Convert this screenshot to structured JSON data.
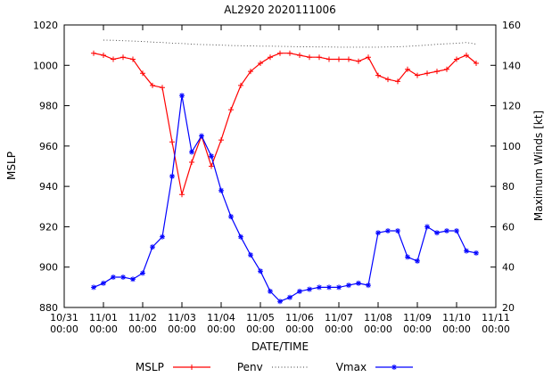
{
  "title": "AL2920 2020111006",
  "axes": {
    "xlabel": "DATE/TIME",
    "ylabel_left": "MSLP",
    "ylabel_right": "Maximum Winds [kt]"
  },
  "legend": {
    "items": [
      {
        "label": "MSLP",
        "color": "#ff0000",
        "style": "solid",
        "marker": "plus"
      },
      {
        "label": "Penv",
        "color": "#404040",
        "style": "dotted",
        "marker": "none"
      },
      {
        "label": "Vmax",
        "color": "#0000ff",
        "style": "solid",
        "marker": "asterisk"
      }
    ]
  },
  "chart_data": {
    "type": "line",
    "title": "AL2920 2020111006",
    "xlabel": "DATE/TIME",
    "ylabel_left": "MSLP",
    "ylabel_right": "Maximum Winds [kt]",
    "x_unit": "days since 10/31 00:00",
    "xlim": [
      0,
      11
    ],
    "ylim_left": [
      880,
      1020
    ],
    "ylim_right": [
      20,
      160
    ],
    "yticks_left": [
      880,
      900,
      920,
      940,
      960,
      980,
      1000,
      1020
    ],
    "yticks_right": [
      20,
      40,
      60,
      80,
      100,
      120,
      140,
      160
    ],
    "x_tick_dates": [
      "10/31",
      "11/01",
      "11/02",
      "11/03",
      "11/04",
      "11/05",
      "11/06",
      "11/07",
      "11/08",
      "11/09",
      "11/10",
      "11/11"
    ],
    "x_tick_time": "00:00",
    "grid": false,
    "legend_position": "bottom-center",
    "series": [
      {
        "name": "MSLP",
        "axis": "left",
        "color": "#ff0000",
        "line": "solid",
        "marker": "plus",
        "x": [
          0.75,
          1,
          1.25,
          1.5,
          1.75,
          2,
          2.25,
          2.5,
          2.75,
          3,
          3.25,
          3.5,
          3.75,
          4,
          4.25,
          4.5,
          4.75,
          5,
          5.25,
          5.5,
          5.75,
          6,
          6.25,
          6.5,
          6.75,
          7,
          7.25,
          7.5,
          7.75,
          8,
          8.25,
          8.5,
          8.75,
          9,
          9.25,
          9.5,
          9.75,
          10,
          10.25,
          10.5
        ],
        "y": [
          1006,
          1005,
          1003,
          1004,
          1003,
          996,
          990,
          989,
          962,
          936,
          952,
          965,
          950,
          963,
          978,
          990,
          997,
          1001,
          1004,
          1006,
          1006,
          1005,
          1004,
          1004,
          1003,
          1003,
          1003,
          1002,
          1004,
          995,
          993,
          992,
          998,
          995,
          996,
          997,
          998,
          1003,
          1005,
          1001
        ]
      },
      {
        "name": "Penv",
        "axis": "left",
        "color": "#404040",
        "line": "dotted",
        "marker": "none",
        "x": [
          1,
          1.25,
          1.5,
          1.75,
          2,
          2.25,
          2.5,
          2.75,
          3,
          3.25,
          3.5,
          3.75,
          4,
          4.25,
          4.5,
          4.75,
          5,
          5.25,
          5.5,
          5.75,
          6,
          6.25,
          6.5,
          6.75,
          7,
          7.25,
          7.5,
          7.75,
          8,
          8.25,
          8.5,
          8.75,
          9,
          9.25,
          9.5,
          9.75,
          10,
          10.25,
          10.5
        ],
        "y": [
          1012.5,
          1012.4,
          1012.2,
          1012.0,
          1011.8,
          1011.5,
          1011.3,
          1011.0,
          1010.8,
          1010.5,
          1010.3,
          1010.2,
          1010.0,
          1009.8,
          1009.7,
          1009.6,
          1009.5,
          1009.5,
          1009.4,
          1009.3,
          1009.2,
          1009.2,
          1009.1,
          1009.1,
          1009.0,
          1009.0,
          1009.0,
          1009.0,
          1009.0,
          1009.1,
          1009.2,
          1009.4,
          1009.7,
          1010.0,
          1010.4,
          1010.7,
          1010.9,
          1011.3,
          1010.5
        ]
      },
      {
        "name": "Vmax",
        "axis": "right",
        "color": "#0000ff",
        "line": "solid",
        "marker": "asterisk",
        "x": [
          0.75,
          1,
          1.25,
          1.5,
          1.75,
          2,
          2.25,
          2.5,
          2.75,
          3,
          3.25,
          3.5,
          3.75,
          4,
          4.25,
          4.5,
          4.75,
          5,
          5.25,
          5.5,
          5.75,
          6,
          6.25,
          6.5,
          6.75,
          7,
          7.25,
          7.5,
          7.75,
          8,
          8.25,
          8.5,
          8.75,
          9,
          9.25,
          9.5,
          9.75,
          10,
          10.25,
          10.5
        ],
        "y": [
          30,
          32,
          35,
          35,
          34,
          37,
          50,
          55,
          85,
          125,
          97,
          105,
          95,
          78,
          65,
          55,
          46,
          38,
          28,
          23,
          25,
          28,
          29,
          30,
          30,
          30,
          31,
          32,
          31,
          57,
          58,
          58,
          45,
          43,
          60,
          57,
          58,
          58,
          48,
          47
        ]
      }
    ]
  }
}
